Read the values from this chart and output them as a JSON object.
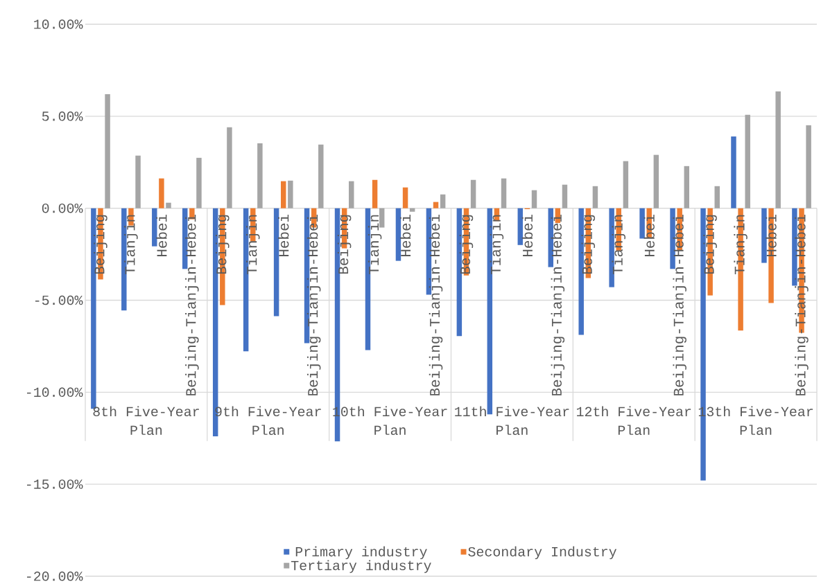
{
  "chart_data": {
    "type": "bar",
    "categories": [
      "Beijing",
      "Tianjin",
      "Hebei",
      "Beijing-Tianjin-Hebei",
      "Beijing",
      "Tianjin",
      "Hebei",
      "Beijing-Tianjin-Hebei",
      "Beijing",
      "Tianjin",
      "Hebei",
      "Beijing-Tianjin-Hebei",
      "Beijing",
      "Tianjin",
      "Hebei",
      "Beijing-Tianjin-Hebei",
      "Beijing",
      "Tianjin",
      "Hebei",
      "Beijing-Tianjin-Hebei",
      "Beijing",
      "Tianjin",
      "Hebei",
      "Beijing-Tianjin-Hebei"
    ],
    "annotations": [
      "8th Five-Year Plan",
      "9th Five-Year Plan",
      "10th Five-Year Plan",
      "11th Five-Year Plan",
      "12th Five-Year Plan",
      "13th Five-Year Plan"
    ],
    "series": [
      {
        "name": "Primary industry",
        "color": "#4472c4",
        "values": [
          -10.9,
          -5.56,
          -2.07,
          -3.3,
          -12.4,
          -7.78,
          -5.87,
          -7.33,
          -12.67,
          -7.71,
          -2.86,
          -4.7,
          -6.95,
          -11.2,
          -2.0,
          -3.2,
          -6.88,
          -4.29,
          -1.65,
          -3.3,
          -14.8,
          3.9,
          -2.97,
          -4.21
        ]
      },
      {
        "name": "Secondary Industry",
        "color": "#ed7d31",
        "values": [
          -3.87,
          -0.94,
          1.62,
          -0.6,
          -5.26,
          -1.8,
          1.47,
          -1.05,
          -2.18,
          1.54,
          1.13,
          0.34,
          -3.65,
          -0.7,
          -0.05,
          -0.8,
          -3.8,
          -2.3,
          -1.6,
          -2.3,
          -4.74,
          -6.65,
          -5.15,
          -6.77
        ]
      },
      {
        "name": "Tertiary industry",
        "color": "#a5a5a5",
        "values": [
          6.2,
          2.86,
          0.3,
          2.74,
          4.4,
          3.53,
          1.5,
          3.46,
          1.47,
          -1.05,
          -0.19,
          0.75,
          1.54,
          1.62,
          0.98,
          1.28,
          1.2,
          2.56,
          2.9,
          2.29,
          1.2,
          5.08,
          6.35,
          4.51
        ]
      }
    ],
    "ylim": [
      -20,
      10
    ],
    "yticks": [
      {
        "value": -20,
        "label": "-20.00%"
      },
      {
        "value": -15,
        "label": "-15.00%"
      },
      {
        "value": -10,
        "label": "-10.00%"
      },
      {
        "value": -5,
        "label": "-5.00%"
      },
      {
        "value": 0,
        "label": "0.00%"
      },
      {
        "value": 5,
        "label": "5.00%"
      },
      {
        "value": 10,
        "label": "10.00%"
      }
    ],
    "grid": "y",
    "legend": "bottom"
  }
}
